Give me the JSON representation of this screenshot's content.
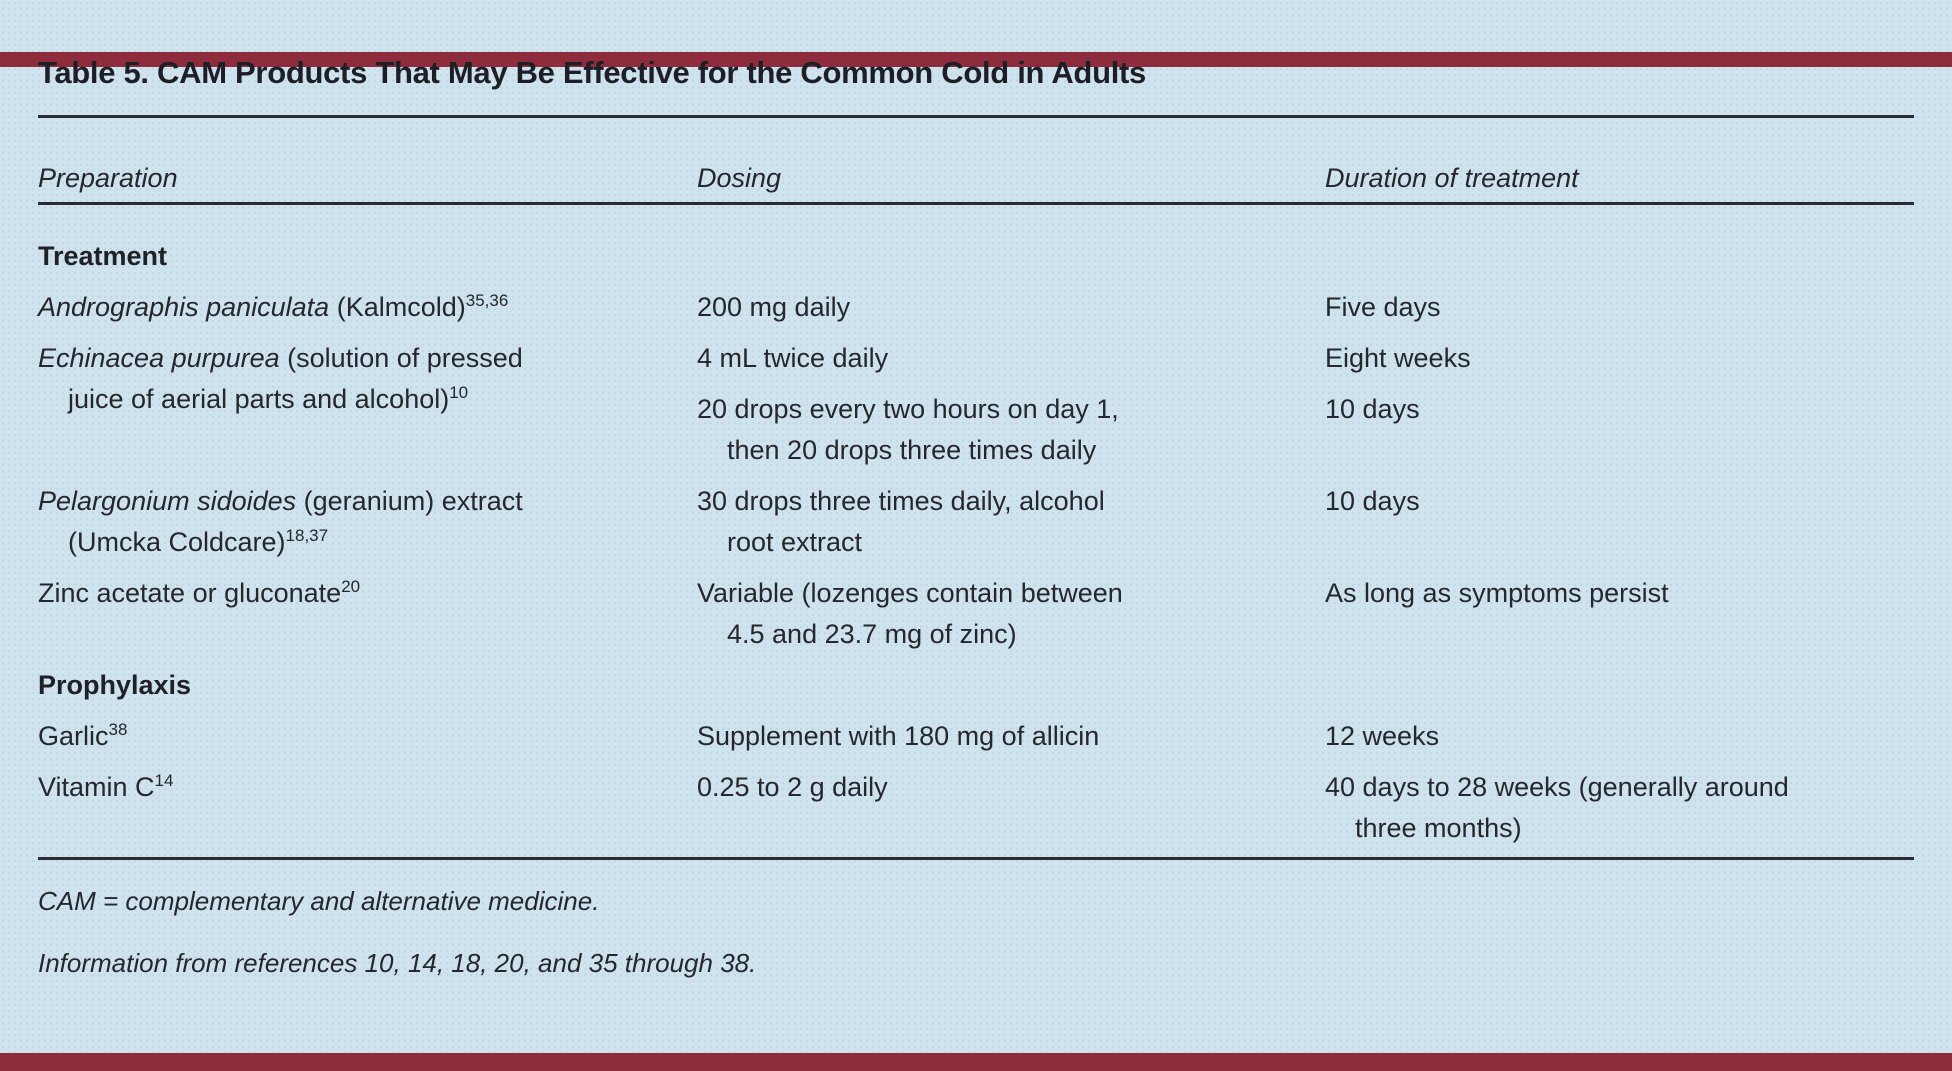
{
  "page": {
    "accent_color": "#8e2b3c",
    "background_color": "#cfe3ee"
  },
  "table": {
    "title": "Table 5. CAM Products That May Be Effective for the Common Cold in Adults",
    "headers": {
      "preparation": "Preparation",
      "dosing": "Dosing",
      "duration": "Duration of treatment"
    },
    "sections": {
      "treatment_label": "Treatment",
      "prophylaxis_label": "Prophylaxis"
    },
    "rows": {
      "andrographis": {
        "name_italic": "Andrographis paniculata",
        "name_rest": " (Kalmcold)",
        "name_sup": "35,36",
        "dosing": "200 mg daily",
        "duration": "Five days"
      },
      "echinacea": {
        "name_italic": "Echinacea purpurea",
        "name_rest": " (solution of pressed\njuice of aerial parts and alcohol)",
        "name_sup": "10",
        "dosing_1": "4 mL twice daily",
        "duration_1": "Eight weeks",
        "dosing_2": "20 drops every two hours on day 1,\nthen 20 drops three times daily",
        "duration_2": "10 days"
      },
      "pelargonium": {
        "name_italic": "Pelargonium sidoides",
        "name_rest": " (geranium) extract\n(Umcka Coldcare)",
        "name_sup": "18,37",
        "dosing": "30 drops three times daily, alcohol\nroot extract",
        "duration": "10 days"
      },
      "zinc": {
        "name": "Zinc acetate or gluconate",
        "name_sup": "20",
        "dosing": "Variable (lozenges contain between\n4.5 and 23.7 mg of zinc)",
        "duration": "As long as symptoms persist"
      },
      "garlic": {
        "name": "Garlic",
        "name_sup": "38",
        "dosing": "Supplement with 180 mg of allicin",
        "duration": "12 weeks"
      },
      "vitamin_c": {
        "name": "Vitamin C",
        "name_sup": "14",
        "dosing": "0.25 to 2 g daily",
        "duration": "40 days to 28 weeks (generally around\nthree months)"
      }
    },
    "footnotes": {
      "abbreviation": "CAM = complementary and alternative medicine.",
      "source": "Information from references 10, 14, 18, 20, and 35 through 38."
    }
  }
}
